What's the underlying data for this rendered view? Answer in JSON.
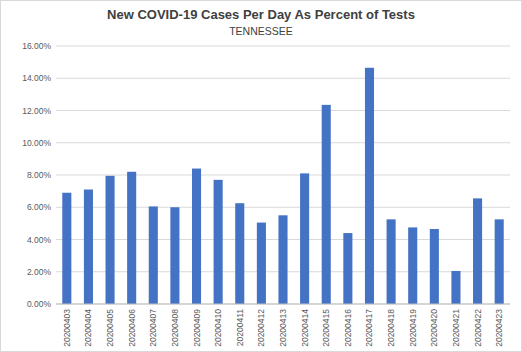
{
  "chart_data": {
    "type": "bar",
    "title": "New COVID-19 Cases Per Day As Percent of Tests",
    "subtitle": "TENNESSEE",
    "categories": [
      "20200403",
      "20200404",
      "20200405",
      "20200406",
      "20200407",
      "20200408",
      "20200409",
      "20200410",
      "20200411",
      "20200412",
      "20200413",
      "20200414",
      "20200415",
      "20200416",
      "20200417",
      "20200418",
      "20200419",
      "20200420",
      "20200421",
      "20200422",
      "20200423"
    ],
    "values": [
      6.9,
      7.1,
      7.95,
      8.2,
      6.05,
      6.0,
      8.4,
      7.7,
      6.25,
      5.05,
      5.5,
      8.1,
      12.35,
      4.4,
      14.65,
      5.25,
      4.75,
      4.65,
      2.05,
      6.55,
      5.25
    ],
    "color": "#4472c4",
    "ylim": [
      0,
      16
    ],
    "yticks": [
      {
        "value": 0,
        "label": "0.00%"
      },
      {
        "value": 2,
        "label": "2.00%"
      },
      {
        "value": 4,
        "label": "4.00%"
      },
      {
        "value": 6,
        "label": "6.00%"
      },
      {
        "value": 8,
        "label": "8.00%"
      },
      {
        "value": 10,
        "label": "10.00%"
      },
      {
        "value": 12,
        "label": "12.00%"
      },
      {
        "value": 14,
        "label": "14.00%"
      },
      {
        "value": 16,
        "label": "16.00%"
      }
    ],
    "grid": true
  }
}
